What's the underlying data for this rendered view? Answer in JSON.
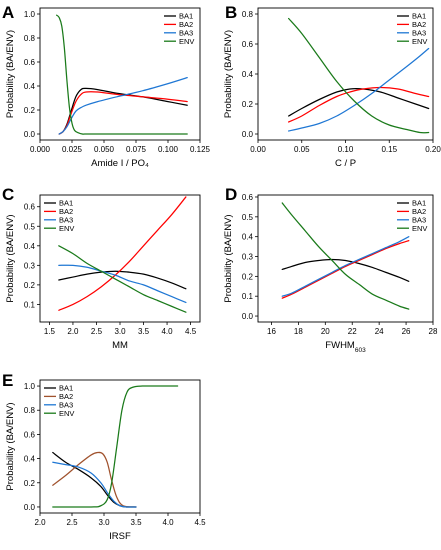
{
  "chart_data": [
    {
      "panel": "A",
      "type": "line",
      "xlabel": "Amide I / PO₄",
      "ylabel": "Probability (BA/ENV)",
      "xlim": [
        0.0,
        0.125
      ],
      "ylim": [
        -0.05,
        1.05
      ],
      "xticks": [
        0.0,
        0.025,
        0.05,
        0.075,
        0.1,
        0.125
      ],
      "xtick_labels": [
        "0.000",
        "0.025",
        "0.050",
        "0.075",
        "0.100",
        "0.125"
      ],
      "yticks": [
        0.0,
        0.2,
        0.4,
        0.6,
        0.8,
        1.0
      ],
      "ytick_labels": [
        "0.0",
        "0.2",
        "0.4",
        "0.6",
        "0.8",
        "1.0"
      ],
      "legend": "top-right",
      "series": [
        {
          "name": "BA1",
          "color": "#000000",
          "x": [
            0.015,
            0.018,
            0.021,
            0.024,
            0.028,
            0.032,
            0.036,
            0.045,
            0.06,
            0.08,
            0.1,
            0.115
          ],
          "y": [
            0.0,
            0.02,
            0.08,
            0.18,
            0.31,
            0.37,
            0.38,
            0.37,
            0.34,
            0.31,
            0.27,
            0.24
          ]
        },
        {
          "name": "BA2",
          "color": "#ff0000",
          "x": [
            0.015,
            0.018,
            0.021,
            0.024,
            0.028,
            0.032,
            0.036,
            0.045,
            0.06,
            0.08,
            0.1,
            0.115
          ],
          "y": [
            0.0,
            0.02,
            0.07,
            0.16,
            0.27,
            0.33,
            0.35,
            0.35,
            0.33,
            0.31,
            0.29,
            0.27
          ]
        },
        {
          "name": "BA3",
          "color": "#1f77d4",
          "x": [
            0.015,
            0.018,
            0.021,
            0.024,
            0.028,
            0.032,
            0.036,
            0.045,
            0.06,
            0.08,
            0.1,
            0.115
          ],
          "y": [
            0.0,
            0.02,
            0.06,
            0.12,
            0.19,
            0.22,
            0.24,
            0.27,
            0.31,
            0.36,
            0.42,
            0.47
          ]
        },
        {
          "name": "ENV",
          "color": "#1a7a1a",
          "x": [
            0.013,
            0.015,
            0.017,
            0.019,
            0.021,
            0.023,
            0.025,
            0.027,
            0.03,
            0.033,
            0.036,
            0.04,
            0.06,
            0.09,
            0.115
          ],
          "y": [
            0.99,
            0.97,
            0.9,
            0.72,
            0.45,
            0.22,
            0.09,
            0.03,
            0.01,
            0.0,
            0.0,
            0.0,
            0.0,
            0.0,
            0.0
          ]
        }
      ]
    },
    {
      "panel": "B",
      "type": "line",
      "xlabel": "C / P",
      "ylabel": "Probability (BA/ENV)",
      "xlim": [
        0.0,
        0.2
      ],
      "ylim": [
        -0.04,
        0.84
      ],
      "xticks": [
        0.0,
        0.05,
        0.1,
        0.15,
        0.2
      ],
      "xtick_labels": [
        "0.00",
        "0.05",
        "0.10",
        "0.15",
        "0.20"
      ],
      "yticks": [
        0.0,
        0.2,
        0.4,
        0.6,
        0.8
      ],
      "ytick_labels": [
        "0.0",
        "0.2",
        "0.4",
        "0.6",
        "0.8"
      ],
      "legend": "top-right",
      "series": [
        {
          "name": "BA1",
          "color": "#000000",
          "x": [
            0.035,
            0.05,
            0.07,
            0.09,
            0.105,
            0.12,
            0.14,
            0.16,
            0.18,
            0.195
          ],
          "y": [
            0.12,
            0.17,
            0.23,
            0.28,
            0.3,
            0.3,
            0.28,
            0.24,
            0.2,
            0.17
          ]
        },
        {
          "name": "BA2",
          "color": "#ff0000",
          "x": [
            0.035,
            0.05,
            0.07,
            0.09,
            0.105,
            0.12,
            0.14,
            0.16,
            0.18,
            0.195
          ],
          "y": [
            0.08,
            0.12,
            0.19,
            0.25,
            0.28,
            0.3,
            0.31,
            0.3,
            0.27,
            0.25
          ]
        },
        {
          "name": "BA3",
          "color": "#1f77d4",
          "x": [
            0.035,
            0.05,
            0.07,
            0.09,
            0.11,
            0.13,
            0.15,
            0.17,
            0.185,
            0.195
          ],
          "y": [
            0.02,
            0.04,
            0.07,
            0.12,
            0.19,
            0.27,
            0.36,
            0.45,
            0.52,
            0.57
          ]
        },
        {
          "name": "ENV",
          "color": "#1a7a1a",
          "x": [
            0.035,
            0.05,
            0.07,
            0.09,
            0.11,
            0.13,
            0.15,
            0.17,
            0.185,
            0.195
          ],
          "y": [
            0.77,
            0.67,
            0.51,
            0.35,
            0.22,
            0.12,
            0.06,
            0.03,
            0.01,
            0.01
          ]
        }
      ]
    },
    {
      "panel": "C",
      "type": "line",
      "xlabel": "MM",
      "ylabel": "Probability (BA/ENV)",
      "xlim": [
        1.3,
        4.7
      ],
      "ylim": [
        0.01,
        0.66
      ],
      "xticks": [
        1.5,
        2.0,
        2.5,
        3.0,
        3.5,
        4.0,
        4.5
      ],
      "xtick_labels": [
        "1.5",
        "2.0",
        "2.5",
        "3.0",
        "3.5",
        "4.0",
        "4.5"
      ],
      "yticks": [
        0.1,
        0.2,
        0.3,
        0.4,
        0.5,
        0.6
      ],
      "ytick_labels": [
        "0.1",
        "0.2",
        "0.3",
        "0.4",
        "0.5",
        "0.6"
      ],
      "legend": "top-left",
      "series": [
        {
          "name": "BA1",
          "color": "#000000",
          "x": [
            1.7,
            2.0,
            2.3,
            2.6,
            2.9,
            3.2,
            3.5,
            3.8,
            4.1,
            4.4
          ],
          "y": [
            0.225,
            0.24,
            0.255,
            0.265,
            0.27,
            0.265,
            0.255,
            0.235,
            0.21,
            0.18
          ]
        },
        {
          "name": "BA2",
          "color": "#ff0000",
          "x": [
            1.7,
            2.0,
            2.3,
            2.6,
            2.9,
            3.2,
            3.5,
            3.8,
            4.1,
            4.4
          ],
          "y": [
            0.07,
            0.1,
            0.14,
            0.19,
            0.25,
            0.32,
            0.4,
            0.48,
            0.56,
            0.65
          ]
        },
        {
          "name": "BA3",
          "color": "#1f77d4",
          "x": [
            1.7,
            2.0,
            2.3,
            2.6,
            2.9,
            3.2,
            3.5,
            3.8,
            4.1,
            4.4
          ],
          "y": [
            0.3,
            0.3,
            0.29,
            0.27,
            0.25,
            0.22,
            0.2,
            0.17,
            0.14,
            0.11
          ]
        },
        {
          "name": "ENV",
          "color": "#1a7a1a",
          "x": [
            1.7,
            2.0,
            2.3,
            2.6,
            2.9,
            3.2,
            3.5,
            3.8,
            4.1,
            4.4
          ],
          "y": [
            0.4,
            0.36,
            0.31,
            0.27,
            0.23,
            0.19,
            0.15,
            0.12,
            0.09,
            0.06
          ]
        }
      ]
    },
    {
      "panel": "D",
      "type": "line",
      "xlabel": "FWHM",
      "xlabel_sub": "603",
      "ylabel": "Probability (BA/ENV)",
      "xlim": [
        15,
        28
      ],
      "ylim": [
        -0.03,
        0.61
      ],
      "xticks": [
        16,
        18,
        20,
        22,
        24,
        26,
        28
      ],
      "xtick_labels": [
        "16",
        "18",
        "20",
        "22",
        "24",
        "26",
        "28"
      ],
      "yticks": [
        0.0,
        0.1,
        0.2,
        0.3,
        0.4,
        0.5,
        0.6
      ],
      "ytick_labels": [
        "0.0",
        "0.1",
        "0.2",
        "0.3",
        "0.4",
        "0.5",
        "0.6"
      ],
      "legend": "top-right",
      "series": [
        {
          "name": "BA1",
          "color": "#000000",
          "x": [
            16.8,
            17.5,
            18.5,
            19.5,
            20.5,
            21.5,
            22.5,
            23.5,
            24.5,
            25.5,
            26.2
          ],
          "y": [
            0.235,
            0.25,
            0.27,
            0.28,
            0.285,
            0.28,
            0.265,
            0.245,
            0.22,
            0.195,
            0.175
          ]
        },
        {
          "name": "BA2",
          "color": "#ff0000",
          "x": [
            16.8,
            17.5,
            18.5,
            19.5,
            20.5,
            21.5,
            22.5,
            23.5,
            24.5,
            25.5,
            26.2
          ],
          "y": [
            0.09,
            0.11,
            0.145,
            0.18,
            0.215,
            0.25,
            0.28,
            0.31,
            0.34,
            0.365,
            0.38
          ]
        },
        {
          "name": "BA3",
          "color": "#1f77d4",
          "x": [
            16.8,
            17.5,
            18.5,
            19.5,
            20.5,
            21.5,
            22.5,
            23.5,
            24.5,
            25.5,
            26.2
          ],
          "y": [
            0.1,
            0.115,
            0.15,
            0.185,
            0.22,
            0.255,
            0.285,
            0.315,
            0.345,
            0.375,
            0.4
          ]
        },
        {
          "name": "ENV",
          "color": "#1a7a1a",
          "x": [
            16.8,
            17.5,
            18.5,
            19.5,
            20.5,
            21.5,
            22.5,
            23.5,
            24.5,
            25.5,
            26.2
          ],
          "y": [
            0.57,
            0.51,
            0.43,
            0.35,
            0.28,
            0.21,
            0.16,
            0.11,
            0.08,
            0.05,
            0.035
          ]
        }
      ]
    },
    {
      "panel": "E",
      "type": "line",
      "xlabel": "IRSF",
      "ylabel": "Probability (BA/ENV)",
      "xlim": [
        2.0,
        4.5
      ],
      "ylim": [
        -0.05,
        1.05
      ],
      "xticks": [
        2.0,
        2.5,
        3.0,
        3.5,
        4.0,
        4.5
      ],
      "xtick_labels": [
        "2.0",
        "2.5",
        "3.0",
        "3.5",
        "4.0",
        "4.5"
      ],
      "yticks": [
        0.0,
        0.2,
        0.4,
        0.6,
        0.8,
        1.0
      ],
      "ytick_labels": [
        "0.0",
        "0.2",
        "0.4",
        "0.6",
        "0.8",
        "1.0"
      ],
      "legend": "top-left",
      "series": [
        {
          "name": "BA1",
          "color": "#000000",
          "x": [
            2.2,
            2.4,
            2.6,
            2.8,
            2.95,
            3.05,
            3.15,
            3.25,
            3.35,
            3.5
          ],
          "y": [
            0.45,
            0.37,
            0.31,
            0.24,
            0.17,
            0.1,
            0.04,
            0.01,
            0.0,
            0.0
          ]
        },
        {
          "name": "BA2",
          "color": "#a0522d",
          "x": [
            2.2,
            2.4,
            2.6,
            2.8,
            2.9,
            2.98,
            3.05,
            3.12,
            3.2,
            3.3,
            3.5
          ],
          "y": [
            0.18,
            0.26,
            0.35,
            0.43,
            0.45,
            0.44,
            0.37,
            0.22,
            0.08,
            0.01,
            0.0
          ]
        },
        {
          "name": "BA3",
          "color": "#1f77d4",
          "x": [
            2.2,
            2.4,
            2.6,
            2.8,
            2.95,
            3.05,
            3.15,
            3.25,
            3.35,
            3.5
          ],
          "y": [
            0.37,
            0.35,
            0.33,
            0.28,
            0.2,
            0.12,
            0.05,
            0.01,
            0.0,
            0.0
          ]
        },
        {
          "name": "ENV",
          "color": "#1a7a1a",
          "x": [
            2.2,
            2.8,
            2.95,
            3.05,
            3.12,
            3.2,
            3.28,
            3.36,
            3.45,
            3.6,
            3.8,
            4.15
          ],
          "y": [
            0.0,
            0.0,
            0.01,
            0.06,
            0.2,
            0.5,
            0.8,
            0.95,
            0.99,
            1.0,
            1.0,
            1.0
          ]
        }
      ]
    }
  ]
}
